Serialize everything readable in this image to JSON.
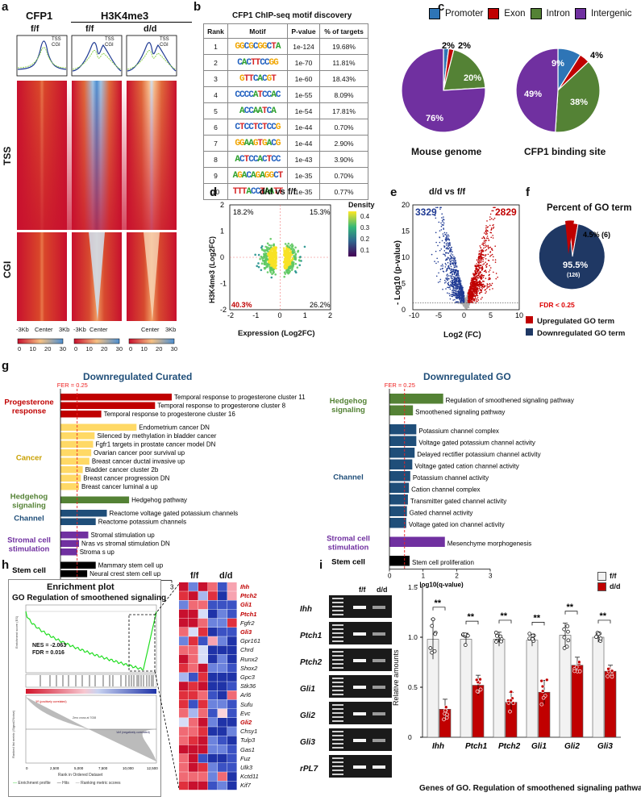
{
  "panel_labels": {
    "a": "a",
    "b": "b",
    "c": "c",
    "d": "d",
    "e": "e",
    "f": "f",
    "g": "g",
    "h": "h",
    "i": "i"
  },
  "panel_a": {
    "col_cfp1": "CFP1",
    "col_h3k4me3": "H3K4me3",
    "ff": "f/f",
    "ff2": "f/f",
    "dd": "d/d",
    "legend_tss": "TSS",
    "legend_cgi": "CGI",
    "row_tss": "TSS",
    "row_cgi": "CGI",
    "xaxis": [
      "-3Kb",
      "Center",
      "3Kb"
    ],
    "scale": [
      "0",
      "10",
      "20",
      "30"
    ],
    "colors": {
      "high": "#c8102e",
      "mid": "#f3b07a",
      "low": "#4d8fd1"
    }
  },
  "panel_b": {
    "title": "CFP1 ChIP-seq motif discovery",
    "headers": [
      "Rank",
      "Motif",
      "P-value",
      "% of targets"
    ],
    "rows": [
      {
        "rank": "1",
        "motif": "GGCGCGGCTA",
        "p": "1e-124",
        "pct": "19.68%"
      },
      {
        "rank": "2",
        "motif": "CACTTCCGG",
        "p": "1e-70",
        "pct": "11.81%"
      },
      {
        "rank": "3",
        "motif": "GTTCACGT",
        "p": "1e-60",
        "pct": "18.43%"
      },
      {
        "rank": "4",
        "motif": "CCCCATCCAC",
        "p": "1e-55",
        "pct": "8.09%"
      },
      {
        "rank": "5",
        "motif": "ACCAATCA",
        "p": "1e-54",
        "pct": "17.81%"
      },
      {
        "rank": "6",
        "motif": "CTCCTCTCCG",
        "p": "1e-44",
        "pct": "0.70%"
      },
      {
        "rank": "7",
        "motif": "GGAAGTGACG",
        "p": "1e-44",
        "pct": "2.90%"
      },
      {
        "rank": "8",
        "motif": "ACTCCACTCC",
        "p": "1e-43",
        "pct": "3.90%"
      },
      {
        "rank": "9",
        "motif": "AGACAGAGGCT",
        "p": "1e-35",
        "pct": "0.70%"
      },
      {
        "rank": "10",
        "motif": "TTTACCTAATT",
        "p": "1e-35",
        "pct": "0.77%"
      }
    ]
  },
  "chart_data": [
    {
      "type": "pie",
      "id": "c-mouse",
      "title": "Mouse genome",
      "legend": [
        "Promoter",
        "Exon",
        "Intron",
        "Intergenic"
      ],
      "colors": [
        "#2e75b6",
        "#c00000",
        "#548235",
        "#7030a0"
      ],
      "values": [
        2,
        2,
        20,
        76
      ],
      "labels": [
        "2%",
        "2%",
        "20%",
        "76%"
      ]
    },
    {
      "type": "pie",
      "id": "c-cfp1",
      "title": "CFP1 binding site",
      "legend": [
        "Promoter",
        "Exon",
        "Intron",
        "Intergenic"
      ],
      "colors": [
        "#2e75b6",
        "#c00000",
        "#548235",
        "#7030a0"
      ],
      "values": [
        9,
        4,
        38,
        49
      ],
      "labels": [
        "9%",
        "4%",
        "38%",
        "49%"
      ]
    },
    {
      "type": "scatter",
      "id": "d",
      "title": "d/d vs f/f",
      "xlabel": "Expression (Log2FC)",
      "ylabel": "H3K4me3 (Log2FC)",
      "xlim": [
        -2,
        2
      ],
      "ylim": [
        -2,
        2
      ],
      "xticks": [
        "-2",
        "-1",
        "0",
        "1",
        "2"
      ],
      "yticks": [
        "-2",
        "-1",
        "0",
        "1",
        "2"
      ],
      "quadrants": {
        "tl": "18.2%",
        "tr": "15.3%",
        "bl": "40.3%",
        "br": "26.2%"
      },
      "legend_title": "Density",
      "legend_ticks": [
        "0.4",
        "0.3",
        "0.2",
        "0.1"
      ]
    },
    {
      "type": "scatter",
      "id": "e",
      "title": "d/d vs f/f",
      "xlabel": "Log2 (FC)",
      "ylabel": "- Log10 (p-value)",
      "xlim": [
        -10,
        10
      ],
      "ylim": [
        0,
        20
      ],
      "xticks": [
        "-10",
        "-5",
        "0",
        "5",
        "10"
      ],
      "yticks": [
        "0",
        "5",
        "10",
        "15",
        "20"
      ],
      "down_count": "3329",
      "up_count": "2829"
    },
    {
      "type": "pie",
      "id": "f",
      "title": "Percent of GO term",
      "values": [
        4.5,
        95.5
      ],
      "colors": [
        "#c00000",
        "#1f3864"
      ],
      "labels": [
        "4.5% (6)",
        "95.5%"
      ],
      "sub": "(126)",
      "fdr": "FDR < 0.25",
      "legend": [
        "Upregulated GO term",
        "Downregulated GO term"
      ]
    },
    {
      "type": "bar",
      "id": "g-curated",
      "title": "Downregulated Curated",
      "xlabel": "- log10(q-value)",
      "xlim": [
        0,
        3
      ],
      "xticks": [
        "0",
        "1",
        "2",
        "3"
      ],
      "fer": "FER = 0.25",
      "groups": [
        {
          "name": "Progesterone response",
          "color": "#c00000",
          "items": [
            {
              "label": "Temporal response to progesterone cluster 11",
              "value": 3.0
            },
            {
              "label": "Temporal response to progesterone cluster 8",
              "value": 2.55
            },
            {
              "label": "Temporal response to progesterone cluster 16",
              "value": 1.1
            }
          ]
        },
        {
          "name": "Cancer",
          "color": "#ffd966",
          "items": [
            {
              "label": "Endometrium cancer DN",
              "value": 2.05
            },
            {
              "label": "Silenced by methylation in bladder cancer",
              "value": 0.92
            },
            {
              "label": "Fgfr1 targets in prostate cancer model DN",
              "value": 0.88
            },
            {
              "label": "Ovarian cancer poor survival up",
              "value": 0.83
            },
            {
              "label": "Breast cancer ductal invasive up",
              "value": 0.78
            },
            {
              "label": "Bladder cancer cluster 2b",
              "value": 0.6
            },
            {
              "label": "Breast cancer progression DN",
              "value": 0.55
            },
            {
              "label": "Breast cancer luminal a up",
              "value": 0.5
            }
          ]
        },
        {
          "name": "Hedgehog signaling",
          "color": "#548235",
          "items": [
            {
              "label": "Hedgehog pathway",
              "value": 1.85
            }
          ]
        },
        {
          "name": "Channel",
          "color": "#1f4e79",
          "items": [
            {
              "label": "Reactome voltage gated potassium channels",
              "value": 1.25
            },
            {
              "label": "Reactome potassium channels",
              "value": 0.95
            }
          ]
        },
        {
          "name": "Stromal cell stimulation",
          "color": "#7030a0",
          "items": [
            {
              "label": "Stromal stimulation up",
              "value": 0.75
            },
            {
              "label": "Nras vs stromal stimulation DN",
              "value": 0.5
            },
            {
              "label": "Stroma s up",
              "value": 0.45
            }
          ]
        },
        {
          "name": "Stem cell",
          "color": "#000000",
          "items": [
            {
              "label": "Mammary stem cell up",
              "value": 0.95
            },
            {
              "label": "Neural crest stem cell up",
              "value": 0.72
            }
          ]
        }
      ]
    },
    {
      "type": "bar",
      "id": "g-go",
      "title": "Downregulated GO",
      "xlabel": "- log10(q-value)",
      "xlim": [
        0,
        3
      ],
      "xticks": [
        "0",
        "1",
        "2",
        "3"
      ],
      "fer": "FER = 0.25",
      "groups": [
        {
          "name": "Hedgehog signaling",
          "color": "#548235",
          "items": [
            {
              "label": "Regulation of smoothened signaling pathway",
              "value": 1.6
            },
            {
              "label": "Smoothened signaling pathway",
              "value": 0.7
            }
          ]
        },
        {
          "name": "Channel",
          "color": "#1f4e79",
          "items": [
            {
              "label": "Potassium channel complex",
              "value": 0.8
            },
            {
              "label": "Voltage gated potassium channel activity",
              "value": 0.8
            },
            {
              "label": "Delayed rectifier potassium channel activity",
              "value": 0.75
            },
            {
              "label": "Voltage gated cation channel activity",
              "value": 0.68
            },
            {
              "label": "Potassium channel activity",
              "value": 0.62
            },
            {
              "label": "Cation channel complex",
              "value": 0.58
            },
            {
              "label": "Transmitter gated channel activity",
              "value": 0.55
            },
            {
              "label": "Gated channel activity",
              "value": 0.52
            },
            {
              "label": "Voltage gated ion channel activity",
              "value": 0.5
            }
          ]
        },
        {
          "name": "Stromal cell stimulation",
          "color": "#7030a0",
          "items": [
            {
              "label": "Mesenchyme morphogenesis",
              "value": 1.65
            }
          ]
        },
        {
          "name": "Stem cell",
          "color": "#000000",
          "items": [
            {
              "label": "Stem cell proliferation",
              "value": 0.6
            }
          ]
        }
      ]
    },
    {
      "type": "line",
      "id": "h-enrichment",
      "title": "Enrichment plot",
      "subtitle": "GO Regulation of smoothened signaling",
      "nes": "NES = -2.063",
      "fdr": "FDR = 0.016",
      "xlabel": "Rank in Ordered Dataset",
      "xticks": [
        "0",
        "2,500",
        "5,000",
        "7,500",
        "10,000",
        "12,500"
      ],
      "ylabel": "Enrichment score (ES)",
      "ylabel2": "Ranked list metric (Signal2Noise)",
      "legend": [
        "Enrichment profile",
        "Hits",
        "Ranking metric scores"
      ],
      "pos_label": "'f/f' (positively correlated)",
      "neg_label": "'d/d' (negatively correlated)",
      "zero_label": "Zero cross at 7038"
    },
    {
      "type": "bar",
      "id": "i-qpcr",
      "ylabel": "Relative amounts",
      "xlabel": "Genes of GO. Regulation of smoothened signaling pathway",
      "categories": [
        "Ihh",
        "Ptch1",
        "Ptch2",
        "Gli1",
        "Gli2",
        "Gli3"
      ],
      "ylim": [
        0,
        1.5
      ],
      "yticks": [
        "0",
        "0.5",
        "1.0",
        "1.5"
      ],
      "series": [
        {
          "name": "f/f",
          "color": "#f2f2f2",
          "values": [
            0.98,
            0.98,
            0.98,
            0.97,
            1.02,
            1.0
          ],
          "err": [
            0.2,
            0.06,
            0.07,
            0.06,
            0.12,
            0.05
          ]
        },
        {
          "name": "d/d",
          "color": "#c00000",
          "values": [
            0.28,
            0.52,
            0.35,
            0.45,
            0.72,
            0.66
          ],
          "err": [
            0.1,
            0.1,
            0.1,
            0.12,
            0.08,
            0.06
          ]
        }
      ],
      "sig": [
        "**",
        "**",
        "**",
        "**",
        "**",
        "**"
      ]
    }
  ],
  "panel_h": {
    "ff": "f/f",
    "dd": "d/d",
    "genes": [
      {
        "name": "Ihh",
        "highlight": true
      },
      {
        "name": "Ptch2",
        "highlight": true
      },
      {
        "name": "Gli1",
        "highlight": true
      },
      {
        "name": "Ptch1",
        "highlight": true
      },
      {
        "name": "Fgfr2",
        "highlight": false
      },
      {
        "name": "Gli3",
        "highlight": true
      },
      {
        "name": "Gpr161",
        "highlight": false
      },
      {
        "name": "Chrd",
        "highlight": false
      },
      {
        "name": "Runx2",
        "highlight": false
      },
      {
        "name": "Shox2",
        "highlight": false
      },
      {
        "name": "Gpc3",
        "highlight": false
      },
      {
        "name": "Stk36",
        "highlight": false
      },
      {
        "name": "Arl6",
        "highlight": false
      },
      {
        "name": "Sufu",
        "highlight": false
      },
      {
        "name": "Evc",
        "highlight": false
      },
      {
        "name": "Gli2",
        "highlight": true
      },
      {
        "name": "Chsy1",
        "highlight": false
      },
      {
        "name": "Tulp3",
        "highlight": false
      },
      {
        "name": "Gas1",
        "highlight": false
      },
      {
        "name": "Fuz",
        "highlight": false
      },
      {
        "name": "Ulk3",
        "highlight": false
      },
      {
        "name": "Kctd11",
        "highlight": false
      },
      {
        "name": "Kif7",
        "highlight": false
      }
    ]
  },
  "panel_i": {
    "gel_ff": "f/f",
    "gel_dd": "d/d",
    "gel_rows": [
      "Ihh",
      "Ptch1",
      "Ptch2",
      "Gli1",
      "Gli2",
      "Gli3",
      "rPL7"
    ],
    "legend_ff": "f/f",
    "legend_dd": "d/d"
  }
}
